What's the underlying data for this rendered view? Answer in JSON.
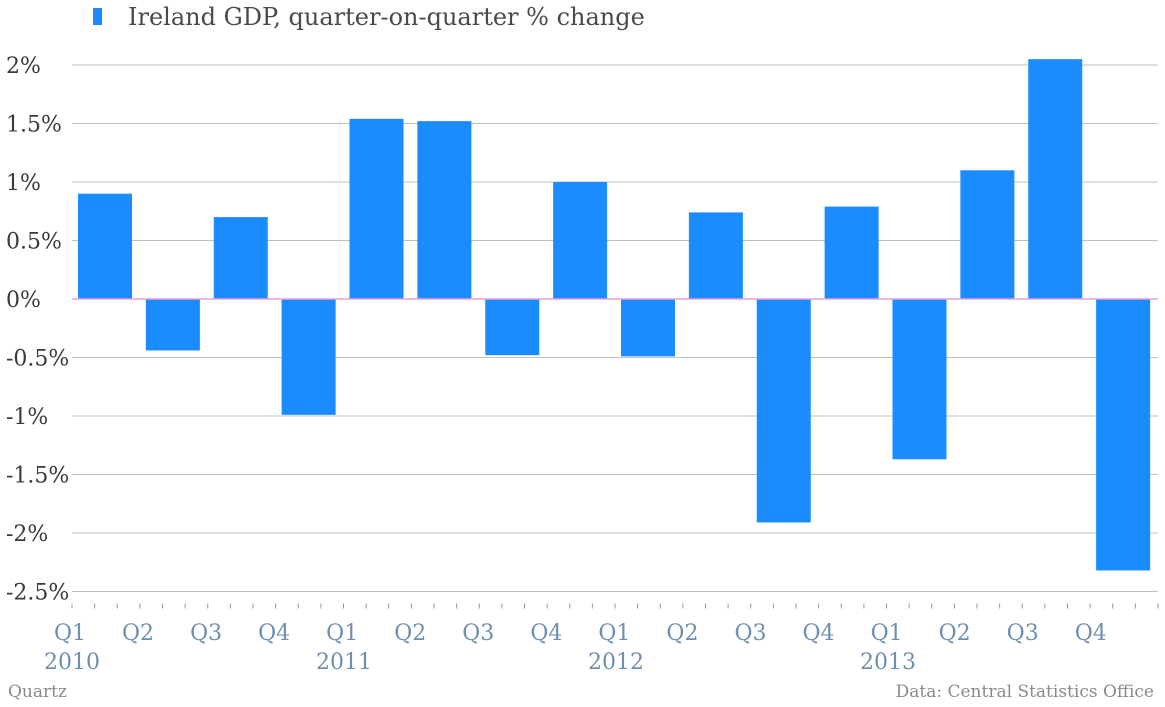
{
  "colors": {
    "bar": "#1a8cff",
    "zero_line": "#e8a0d8",
    "grid": "#bfbfbf"
  },
  "legend": {
    "label": "Ireland GDP, quarter-on-quarter % change",
    "icon": "legend-swatch"
  },
  "source": "Data: Central Statistics Office",
  "brand": "Quartz",
  "chart_data": {
    "type": "bar",
    "title": "",
    "xlabel": "",
    "ylabel": "",
    "series": [
      {
        "name": "Ireland GDP, quarter-on-quarter % change",
        "values": [
          0.9,
          -0.44,
          0.7,
          -0.99,
          1.54,
          1.52,
          -0.48,
          1.0,
          -0.49,
          0.74,
          -1.91,
          0.79,
          -1.37,
          1.1,
          2.05,
          -2.32
        ]
      }
    ],
    "categories": [
      "2010 Q1",
      "2010 Q2",
      "2010 Q3",
      "2010 Q4",
      "2011 Q1",
      "2011 Q2",
      "2011 Q3",
      "2011 Q4",
      "2012 Q1",
      "2012 Q2",
      "2012 Q3",
      "2012 Q4",
      "2013 Q1",
      "2013 Q2",
      "2013 Q3",
      "2013 Q4"
    ],
    "ylim": [
      -2.5,
      2.2
    ],
    "yticks": [
      2,
      1.5,
      1,
      0.5,
      0,
      -0.5,
      -1,
      -1.5,
      -2,
      -2.5
    ],
    "ytick_labels": [
      "2%",
      "1.5%",
      "1%",
      "0.5%",
      "0%",
      "-0.5%",
      "-1%",
      "-1.5%",
      "-2%",
      "-2.5%"
    ],
    "xtick_labels": [
      "Q1",
      "Q2",
      "Q3",
      "Q4",
      "Q1",
      "Q2",
      "Q3",
      "Q4",
      "Q1",
      "Q2",
      "Q3",
      "Q4",
      "Q1",
      "Q2",
      "Q3",
      "Q4"
    ],
    "year_labels": [
      "2010",
      "2011",
      "2012",
      "2013"
    ],
    "grid": true,
    "legend_position": "top-left"
  }
}
